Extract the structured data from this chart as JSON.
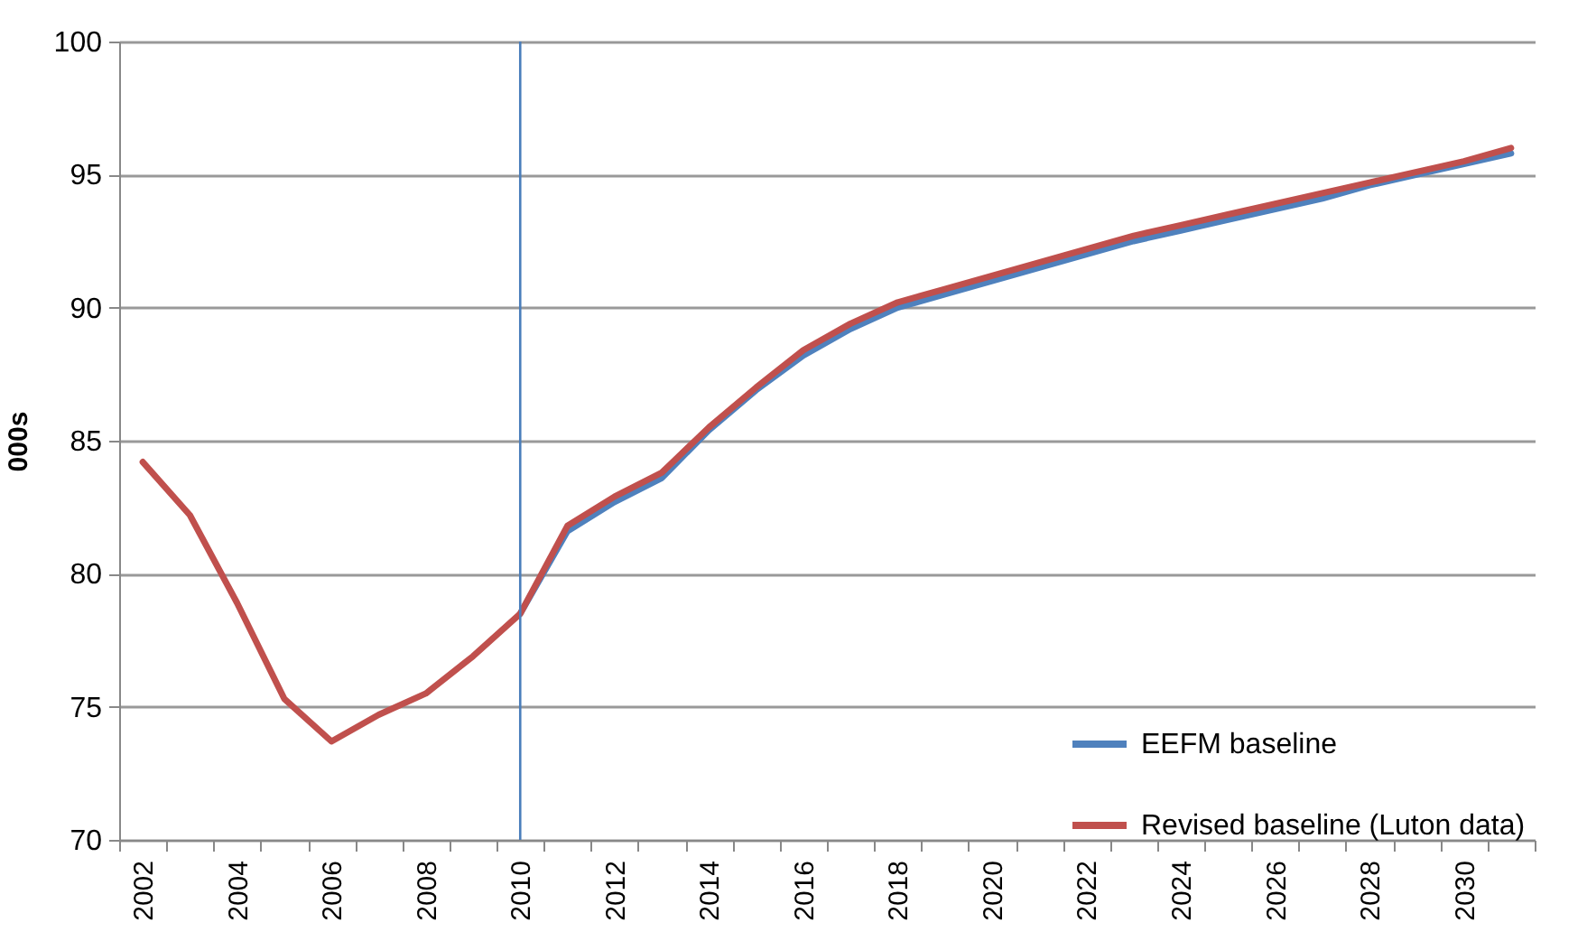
{
  "chart_data": {
    "type": "line",
    "ylabel": "000s",
    "categories": [
      "2002",
      null,
      "2004",
      null,
      "2006",
      null,
      "2008",
      null,
      "2010",
      null,
      "2012",
      null,
      "2014",
      null,
      "2016",
      null,
      "2018",
      null,
      "2020",
      null,
      "2022",
      null,
      "2024",
      null,
      "2026",
      null,
      "2028",
      null,
      "2030",
      null
    ],
    "series": [
      {
        "name": "EEFM baseline",
        "color": "#4f81bd",
        "values": [
          null,
          null,
          null,
          null,
          null,
          null,
          null,
          null,
          78.5,
          81.6,
          82.7,
          83.6,
          85.4,
          86.9,
          88.2,
          89.2,
          90.0,
          90.5,
          91.0,
          91.5,
          92.0,
          92.5,
          92.9,
          93.3,
          93.7,
          94.1,
          94.6,
          95.0,
          95.4,
          95.8
        ]
      },
      {
        "name": "Revised baseline (Luton  data)",
        "color": "#c0504d",
        "values": [
          84.2,
          82.2,
          78.9,
          75.3,
          73.7,
          74.7,
          75.5,
          76.9,
          78.5,
          81.8,
          82.9,
          83.8,
          85.5,
          87.0,
          88.4,
          89.4,
          90.2,
          90.7,
          91.2,
          91.7,
          92.2,
          92.7,
          93.1,
          93.5,
          93.9,
          94.3,
          94.7,
          95.1,
          95.5,
          96.0
        ]
      }
    ],
    "ylim": [
      70,
      100
    ],
    "yticks": [
      70,
      75,
      80,
      85,
      90,
      95,
      100
    ],
    "grid": "y",
    "legend": "bottom right",
    "ref_lines": [
      {
        "axis": "x",
        "value": "2010",
        "color": "#4a7ebb"
      }
    ]
  }
}
